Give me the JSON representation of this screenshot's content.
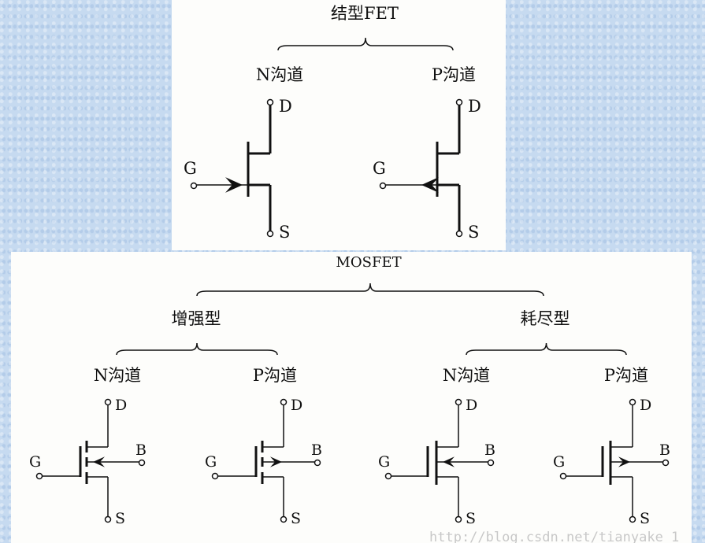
{
  "jfet": {
    "title": "结型FET",
    "n_channel": "N沟道",
    "p_channel": "P沟道"
  },
  "mosfet": {
    "title": "MOSFET",
    "enhancement": "增强型",
    "depletion": "耗尽型",
    "enh_n": "N沟道",
    "enh_p": "P沟道",
    "dep_n": "N沟道",
    "dep_p": "P沟道"
  },
  "terminals": {
    "drain": "D",
    "source": "S",
    "gate": "G",
    "bulk": "B"
  },
  "watermark": "http://blog.csdn.net/tianyake_1",
  "colors": {
    "background": "#c6daf0",
    "panel": "#fdfdfb",
    "ink": "#111111"
  }
}
